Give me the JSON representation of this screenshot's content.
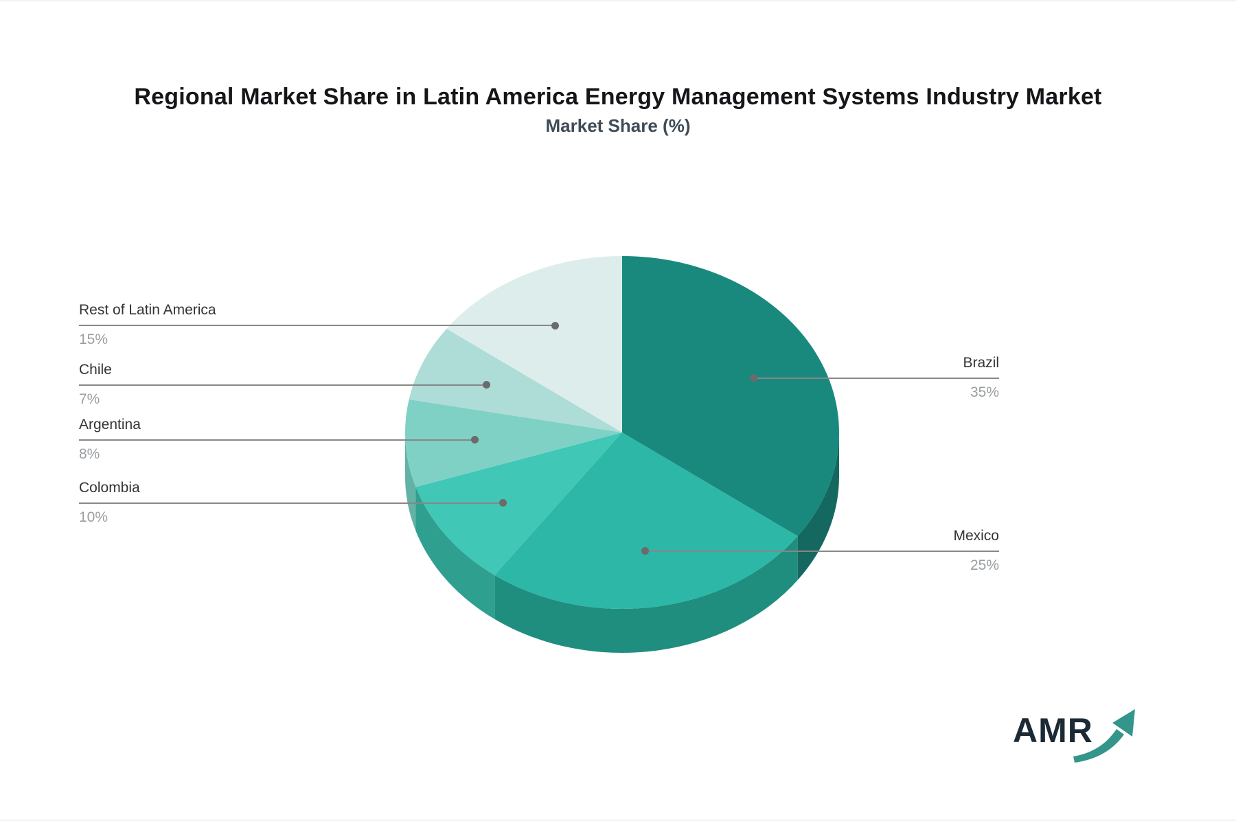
{
  "header": {
    "title": "Regional Market Share in Latin America Energy Management Systems Industry Market",
    "subtitle": "Market Share (%)"
  },
  "chart_data": {
    "type": "pie",
    "title": "Regional Market Share in Latin America Energy Management Systems Industry Market",
    "subtitle": "Market Share (%)",
    "unit": "%",
    "style": "3d-pie",
    "start_angle_deg": 0,
    "direction": "clockwise",
    "legend_position": "none",
    "slices": [
      {
        "label": "Brazil",
        "value": 35,
        "display": "35%",
        "color": "#19897e",
        "side_color": "#14685f",
        "label_side": "right"
      },
      {
        "label": "Mexico",
        "value": 25,
        "display": "25%",
        "color": "#2cb7a6",
        "side_color": "#1f8e7f",
        "label_side": "right"
      },
      {
        "label": "Colombia",
        "value": 10,
        "display": "10%",
        "color": "#40c7b5",
        "side_color": "#2f9f90",
        "label_side": "left"
      },
      {
        "label": "Argentina",
        "value": 8,
        "display": "8%",
        "color": "#7fd1c6",
        "side_color": "#62b2a6",
        "label_side": "left"
      },
      {
        "label": "Chile",
        "value": 7,
        "display": "7%",
        "color": "#aedcd6",
        "side_color": "#8cc4bc",
        "label_side": "left"
      },
      {
        "label": "Rest of Latin America",
        "value": 15,
        "display": "15%",
        "color": "#dcedeb",
        "side_color": "#b8d6d2",
        "label_side": "left"
      }
    ]
  },
  "branding": {
    "logo_text": "AMR"
  },
  "styles": {
    "title_color": "#141619",
    "subtitle_color": "#3f4c57",
    "name_color": "#333333",
    "pct_color": "#9a9ea1",
    "connector_color": "#878787",
    "dot_color": "#6b6b6b",
    "logo_text_color": "#1b2a35",
    "logo_arrow_color": "#34958b",
    "background": "#ffffff"
  }
}
